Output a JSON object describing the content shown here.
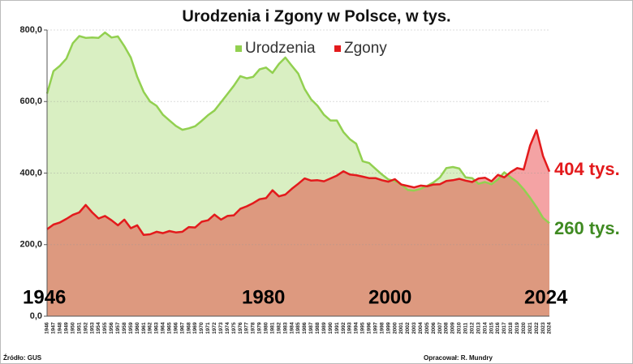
{
  "chart_data": {
    "type": "area",
    "title": "Urodzenia i Zgony w Polsce, w tys.",
    "categories": [
      "1946",
      "1947",
      "1948",
      "1949",
      "1950",
      "1951",
      "1952",
      "1953",
      "1954",
      "1955",
      "1956",
      "1957",
      "1958",
      "1959",
      "1960",
      "1961",
      "1962",
      "1963",
      "1964",
      "1965",
      "1966",
      "1967",
      "1968",
      "1969",
      "1970",
      "1971",
      "1972",
      "1973",
      "1974",
      "1975",
      "1976",
      "1977",
      "1978",
      "1979",
      "1980",
      "1981",
      "1982",
      "1983",
      "1984",
      "1985",
      "1986",
      "1987",
      "1988",
      "1989",
      "1990",
      "1991",
      "1992",
      "1993",
      "1994",
      "1995",
      "1996",
      "1997",
      "1998",
      "1999",
      "2000",
      "2001",
      "2002",
      "2003",
      "2004",
      "2005",
      "2006",
      "2007",
      "2008",
      "2009",
      "2010",
      "2011",
      "2012",
      "2013",
      "2014",
      "2015",
      "2016",
      "2017",
      "2018",
      "2019",
      "2020",
      "2021",
      "2022",
      "2023",
      "2024"
    ],
    "series": [
      {
        "name": "Urodzenia",
        "color": "#92d050",
        "values": [
          622,
          685,
          700,
          720,
          763,
          783,
          778,
          779,
          778,
          793,
          779,
          782,
          755,
          723,
          669,
          627,
          600,
          588,
          563,
          547,
          532,
          521,
          525,
          531,
          546,
          562,
          575,
          598,
          621,
          644,
          671,
          665,
          669,
          690,
          695,
          680,
          705,
          723,
          700,
          678,
          635,
          606,
          588,
          563,
          547,
          547,
          515,
          495,
          482,
          433,
          428,
          412,
          396,
          382,
          378,
          368,
          353,
          351,
          356,
          364,
          374,
          388,
          414,
          417,
          413,
          388,
          386,
          370,
          375,
          369,
          382,
          402,
          388,
          375,
          355,
          331,
          305,
          275,
          260
        ]
      },
      {
        "name": "Zgony",
        "color": "#e31a1c",
        "values": [
          243,
          256,
          262,
          272,
          283,
          290,
          311,
          290,
          273,
          280,
          268,
          254,
          270,
          246,
          254,
          227,
          229,
          236,
          232,
          238,
          234,
          236,
          249,
          248,
          264,
          268,
          284,
          270,
          280,
          282,
          300,
          307,
          316,
          327,
          330,
          352,
          335,
          340,
          356,
          370,
          385,
          379,
          380,
          377,
          385,
          393,
          405,
          396,
          394,
          390,
          386,
          386,
          380,
          376,
          383,
          368,
          364,
          360,
          365,
          363,
          368,
          369,
          378,
          380,
          384,
          379,
          375,
          385,
          387,
          377,
          395,
          388,
          403,
          414,
          410,
          477,
          520,
          448,
          404
        ]
      }
    ],
    "ylim": [
      0,
      800
    ],
    "yticks": [
      {
        "value": 0,
        "label": "0,0"
      },
      {
        "value": 200,
        "label": "200,0"
      },
      {
        "value": 400,
        "label": "400,0"
      },
      {
        "value": 600,
        "label": "600,0"
      },
      {
        "value": 800,
        "label": "800,0"
      }
    ],
    "grid": true,
    "annotations": [
      "1946",
      "1980",
      "2000",
      "2024",
      "404 tys.",
      "260 tys."
    ],
    "source": "Źródło: GUS",
    "author": "Opracował: R. Mundry"
  }
}
